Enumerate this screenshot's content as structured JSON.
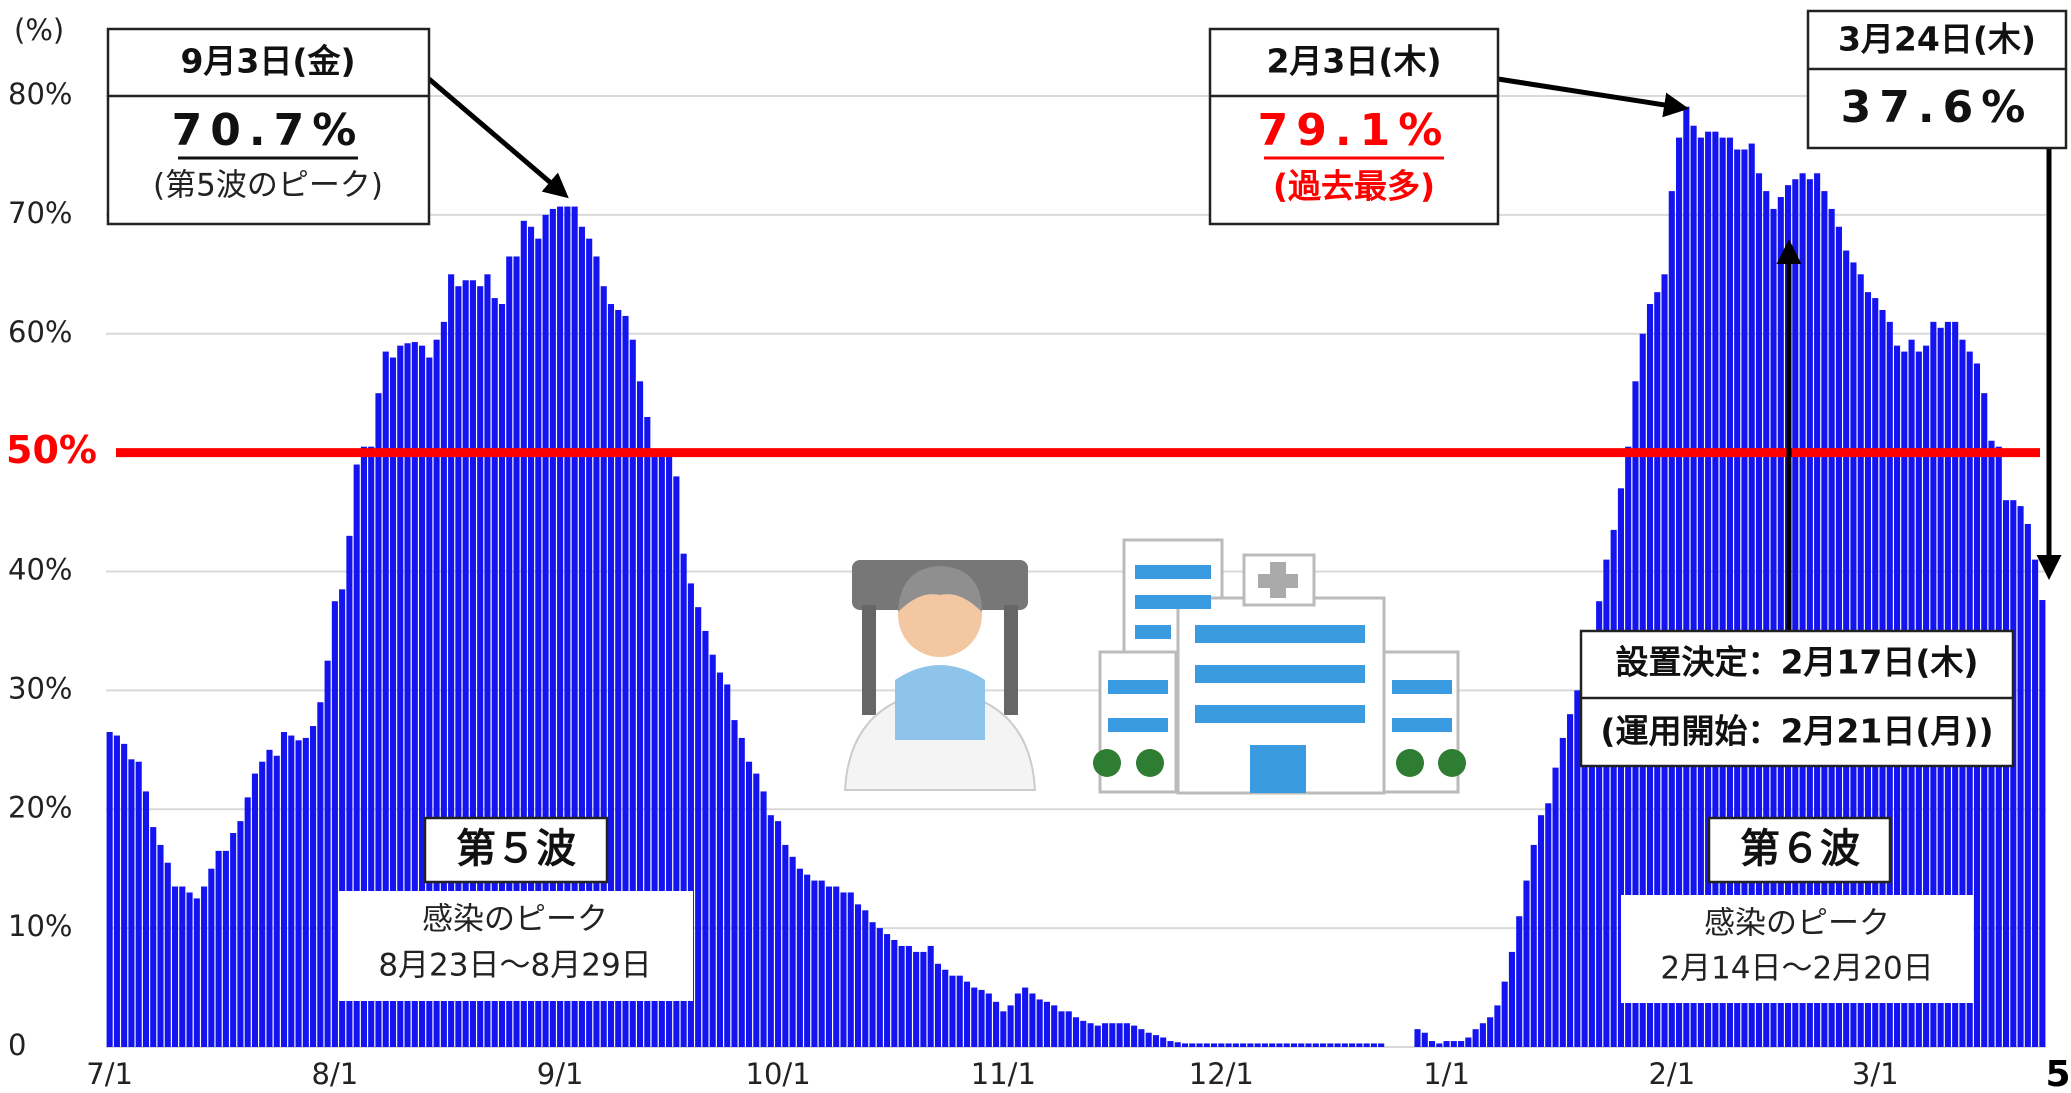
{
  "chart_data": {
    "type": "bar",
    "unit_label": "(%)",
    "categories": [
      "7/1",
      null,
      null,
      null,
      null,
      null,
      null,
      null,
      null,
      null,
      null,
      null,
      null,
      null,
      null,
      null,
      null,
      null,
      null,
      null,
      null,
      null,
      null,
      null,
      null,
      null,
      null,
      null,
      null,
      null,
      null,
      "8/1",
      null,
      null,
      null,
      null,
      null,
      null,
      null,
      null,
      null,
      null,
      null,
      null,
      null,
      null,
      null,
      null,
      null,
      null,
      null,
      null,
      null,
      null,
      null,
      null,
      null,
      null,
      null,
      null,
      null,
      null,
      "9/1",
      null,
      null,
      null,
      null,
      null,
      null,
      null,
      null,
      null,
      null,
      null,
      null,
      null,
      null,
      null,
      null,
      null,
      null,
      null,
      null,
      null,
      null,
      null,
      null,
      null,
      null,
      null,
      null,
      null,
      "10/1",
      null,
      null,
      null,
      null,
      null,
      null,
      null,
      null,
      null,
      null,
      null,
      null,
      null,
      null,
      null,
      null,
      null,
      null,
      null,
      null,
      null,
      null,
      null,
      null,
      null,
      null,
      null,
      null,
      null,
      null,
      "11/1",
      null,
      null,
      null,
      null,
      null,
      null,
      null,
      null,
      null,
      null,
      null,
      null,
      null,
      null,
      null,
      null,
      null,
      null,
      null,
      null,
      null,
      null,
      null,
      null,
      null,
      null,
      null,
      null,
      null,
      "12/1",
      null,
      null,
      null,
      null,
      null,
      null,
      null,
      null,
      null,
      null,
      null,
      null,
      null,
      null,
      null,
      null,
      null,
      null,
      null,
      null,
      null,
      null,
      null,
      null,
      null,
      null,
      null,
      null,
      null,
      null,
      "1/1",
      null,
      null,
      null,
      null,
      null,
      null,
      null,
      null,
      null,
      null,
      null,
      null,
      null,
      null,
      null,
      null,
      null,
      null,
      null,
      null,
      null,
      null,
      null,
      null,
      null,
      null,
      null,
      null,
      null,
      null,
      "2/1",
      null,
      null,
      null,
      null,
      null,
      null,
      null,
      null,
      null,
      null,
      null,
      null,
      null,
      null,
      null,
      null,
      null,
      null,
      null,
      null,
      null,
      null,
      null,
      null,
      null,
      null,
      null,
      "3/1",
      null,
      null,
      null,
      null,
      null,
      null,
      null,
      null,
      null,
      null,
      null,
      null,
      null,
      null,
      null,
      null,
      null,
      null,
      null,
      null,
      null,
      null,
      null
    ],
    "values": [
      26.5,
      26.2,
      25.5,
      24.2,
      24,
      21.5,
      18.5,
      17,
      15.5,
      13.5,
      13.5,
      13,
      12.5,
      13.5,
      15,
      16.5,
      16.5,
      18,
      19,
      21,
      23,
      24,
      25,
      24.5,
      26.5,
      26.2,
      25.8,
      26,
      27,
      29,
      32.5,
      37.5,
      38.5,
      43,
      49,
      50.5,
      50.5,
      55,
      58.5,
      58,
      59,
      59.2,
      59.3,
      59,
      58,
      59.5,
      61,
      65,
      64,
      64.5,
      64.5,
      64,
      65,
      63,
      62.5,
      66.5,
      66.5,
      69.5,
      69,
      68,
      70,
      70.5,
      70.7,
      70.7,
      70.7,
      69,
      68,
      66.5,
      64,
      62.5,
      62,
      61.5,
      59.5,
      56,
      53,
      50,
      50,
      50,
      48,
      41.5,
      39,
      37,
      35,
      33,
      31.5,
      30.5,
      27.5,
      26,
      24,
      23,
      21.5,
      19.5,
      19,
      17,
      16,
      15,
      14.5,
      14,
      14,
      13.5,
      13.5,
      13,
      13,
      12,
      11.5,
      10.5,
      10,
      9.5,
      9,
      8.5,
      8.5,
      8,
      8,
      8.5,
      7,
      6.5,
      6,
      6,
      5.5,
      5,
      4.8,
      4.5,
      3.8,
      3,
      3.5,
      4.5,
      5,
      4.5,
      4,
      3.8,
      3.5,
      3,
      3,
      2.5,
      2.2,
      2,
      1.8,
      2,
      2,
      2,
      2,
      1.8,
      1.5,
      1.2,
      1,
      0.8,
      0.5,
      0.4,
      0.3,
      0.3,
      0.3,
      0.3,
      0.3,
      0.3,
      0.3,
      0.3,
      0.3,
      0.3,
      0.3,
      0.3,
      0.3,
      0.3,
      0.3,
      0.3,
      0.3,
      0.3,
      0.3,
      0.3,
      0.3,
      0.3,
      0.3,
      0.3,
      0.3,
      0.3,
      0.3,
      0.3,
      0,
      0,
      0,
      0,
      1.5,
      1.2,
      0.5,
      0.3,
      0.5,
      0.5,
      0.5,
      0.8,
      1.5,
      2,
      2.5,
      3.5,
      5.5,
      8,
      11,
      14,
      17,
      19.5,
      20.5,
      23.5,
      26,
      28,
      30,
      32.5,
      35,
      37.5,
      41,
      43.5,
      47,
      50.5,
      56,
      60,
      62.5,
      63.5,
      65,
      72,
      76.5,
      79.1,
      77.5,
      76.5,
      77,
      77,
      76.5,
      76.5,
      75.5,
      75.5,
      76,
      73.5,
      72,
      70.5,
      71.5,
      72.5,
      73,
      73.5,
      73,
      73.5,
      72,
      70.5,
      69,
      67,
      66,
      65,
      63.5,
      63,
      62,
      61,
      59,
      58.5,
      59.5,
      58.5,
      59,
      61,
      60.5,
      61,
      61,
      59.5,
      58.5,
      57.5,
      55,
      51,
      50.5,
      46,
      46,
      45.5,
      44,
      41,
      37.6
    ],
    "color": "#1414f0",
    "ylim": [
      0,
      80
    ],
    "yticks": [
      0,
      {
        "value": 10,
        "label": "10%"
      },
      {
        "value": 20,
        "label": "20%"
      },
      {
        "value": 30,
        "label": "30%"
      },
      {
        "value": 40,
        "label": "40%"
      },
      {
        "value": 60,
        "label": "60%"
      },
      {
        "value": 70,
        "label": "70%"
      },
      {
        "value": 80,
        "label": "80%"
      }
    ],
    "threshold": {
      "value": 50,
      "label": "50%",
      "color": "#ff0000"
    },
    "grid": true,
    "annotations": {
      "peak5": {
        "date": "9月3日(金)",
        "value": "70.7%",
        "note": "(第5波のピーク)"
      },
      "peak6": {
        "date": "2月3日(木)",
        "value": "79.1%",
        "note": "(過去最多)"
      },
      "latest": {
        "date": "3月24日(木)",
        "value": "37.6%"
      },
      "decision": {
        "line1": "設置決定：2月17日(木)",
        "line2": "(運用開始：2月21日(月))"
      },
      "wave5": {
        "label": "第５波",
        "note1": "感染のピーク",
        "note2": "8月23日～8月29日"
      },
      "wave6": {
        "label": "第６波",
        "note1": "感染のピーク",
        "note2": "2月14日～2月20日"
      }
    }
  },
  "page_number": "5"
}
